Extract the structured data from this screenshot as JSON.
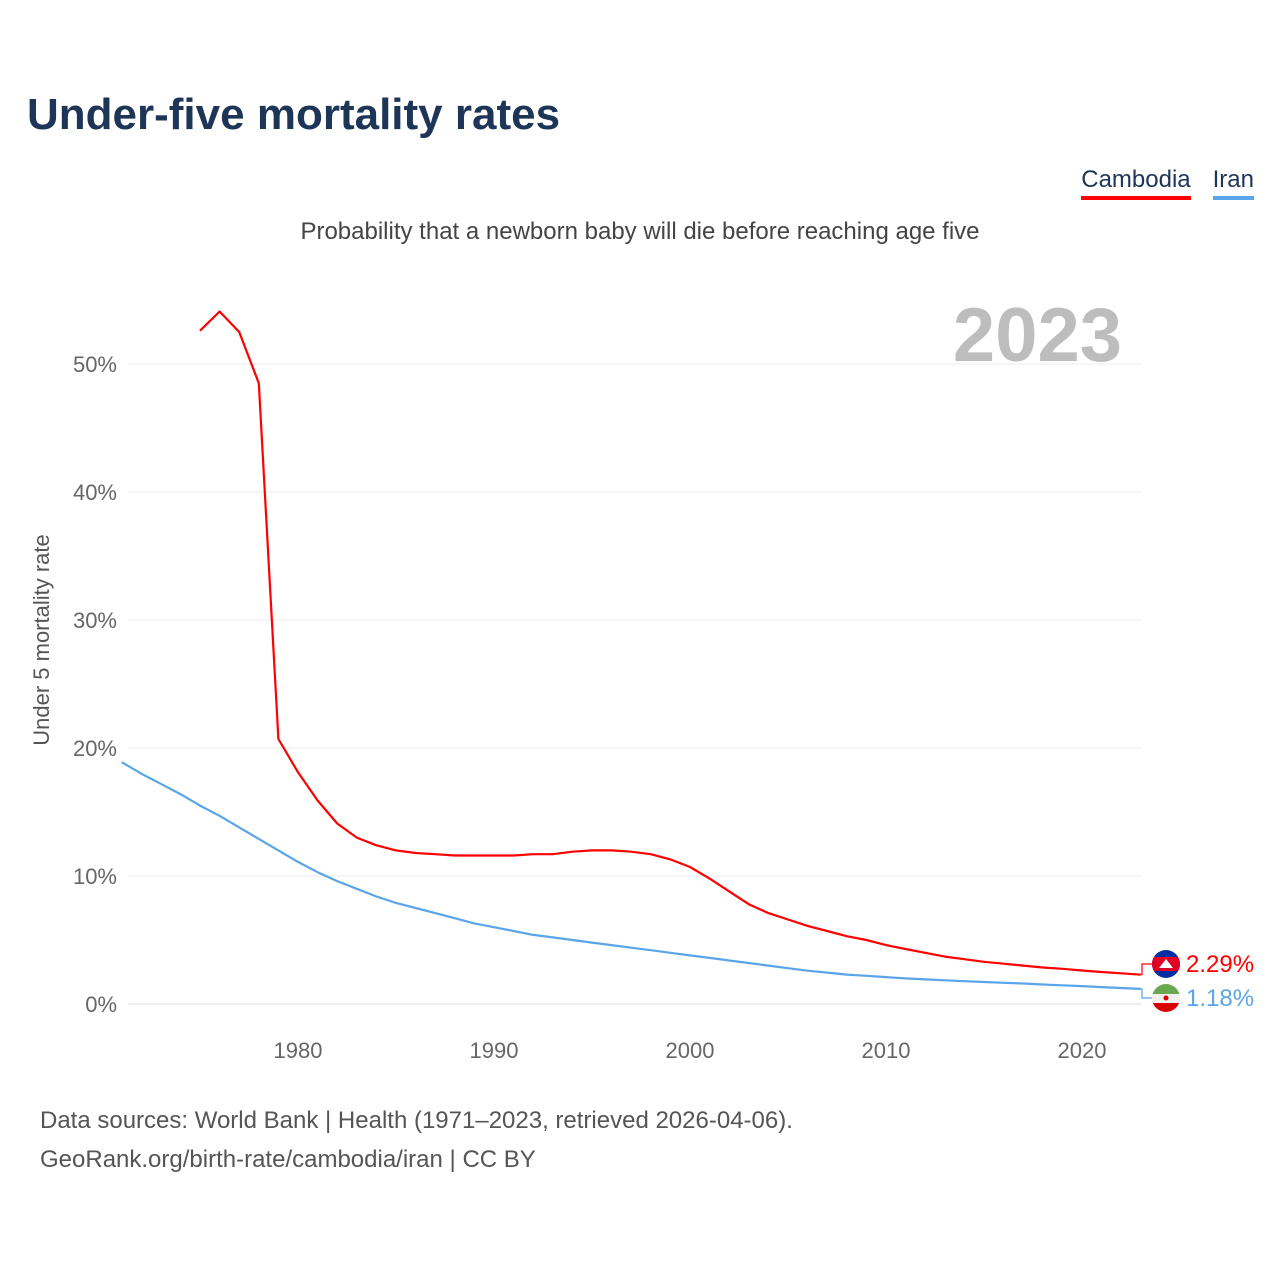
{
  "title": "Under-five mortality rates",
  "subtitle": "Probability that a newborn baby will die before reaching age five",
  "year_display": "2023",
  "legend": [
    {
      "label": "Cambodia",
      "color": "#ff0000"
    },
    {
      "label": "Iran",
      "color": "#5aa5ea"
    }
  ],
  "footer": {
    "line1": "Data sources: World Bank | Health (1971–2023, retrieved 2026-04-06).",
    "line2": "GeoRank.org/birth-rate/cambodia/iran | CC BY"
  },
  "chart_data": {
    "type": "line",
    "title": "Under-five mortality rates",
    "xlabel": "",
    "ylabel": "Under 5 mortality rate",
    "xlim": [
      1971,
      2023
    ],
    "ylim": [
      0,
      55
    ],
    "xticks": [
      1980,
      1990,
      2000,
      2010,
      2020
    ],
    "yticks": [
      0,
      10,
      20,
      30,
      40,
      50
    ],
    "ytick_labels": [
      "0%",
      "10%",
      "20%",
      "30%",
      "40%",
      "50%"
    ],
    "grid": true,
    "series": [
      {
        "name": "Cambodia",
        "color": "#ff0000",
        "end_label": "2.29%",
        "flag": "cambodia-flag",
        "x": [
          1975,
          1976,
          1977,
          1978,
          1979,
          1980,
          1981,
          1982,
          1983,
          1984,
          1985,
          1986,
          1987,
          1988,
          1989,
          1990,
          1991,
          1992,
          1993,
          1994,
          1995,
          1996,
          1997,
          1998,
          1999,
          2000,
          2001,
          2002,
          2003,
          2004,
          2005,
          2006,
          2007,
          2008,
          2009,
          2010,
          2011,
          2012,
          2013,
          2014,
          2015,
          2016,
          2017,
          2018,
          2019,
          2020,
          2021,
          2022,
          2023
        ],
        "y": [
          52.6,
          54.1,
          52.5,
          48.5,
          20.7,
          18.1,
          15.9,
          14.1,
          13.0,
          12.4,
          12.0,
          11.8,
          11.7,
          11.6,
          11.6,
          11.6,
          11.6,
          11.7,
          11.7,
          11.9,
          12.0,
          12.0,
          11.9,
          11.7,
          11.3,
          10.7,
          9.8,
          8.8,
          7.8,
          7.1,
          6.6,
          6.1,
          5.7,
          5.3,
          5.0,
          4.6,
          4.3,
          4.0,
          3.7,
          3.5,
          3.3,
          3.15,
          3.0,
          2.85,
          2.75,
          2.62,
          2.5,
          2.4,
          2.29
        ]
      },
      {
        "name": "Iran",
        "color": "#5aa5ea",
        "end_label": "1.18%",
        "flag": "iran-flag",
        "x": [
          1971,
          1972,
          1973,
          1974,
          1975,
          1976,
          1977,
          1978,
          1979,
          1980,
          1981,
          1982,
          1983,
          1984,
          1985,
          1986,
          1987,
          1988,
          1989,
          1990,
          1991,
          1992,
          1993,
          1994,
          1995,
          1996,
          1997,
          1998,
          1999,
          2000,
          2001,
          2002,
          2003,
          2004,
          2005,
          2006,
          2007,
          2008,
          2009,
          2010,
          2011,
          2012,
          2013,
          2014,
          2015,
          2016,
          2017,
          2018,
          2019,
          2020,
          2021,
          2022,
          2023
        ],
        "y": [
          18.9,
          18.0,
          17.2,
          16.4,
          15.5,
          14.7,
          13.8,
          12.9,
          12.0,
          11.1,
          10.3,
          9.6,
          9.0,
          8.4,
          7.9,
          7.5,
          7.1,
          6.7,
          6.3,
          6.0,
          5.7,
          5.4,
          5.2,
          5.0,
          4.8,
          4.6,
          4.4,
          4.2,
          4.0,
          3.8,
          3.6,
          3.4,
          3.2,
          3.0,
          2.8,
          2.6,
          2.45,
          2.3,
          2.2,
          2.1,
          2.0,
          1.92,
          1.85,
          1.78,
          1.72,
          1.66,
          1.6,
          1.52,
          1.46,
          1.4,
          1.32,
          1.25,
          1.18
        ]
      }
    ]
  }
}
